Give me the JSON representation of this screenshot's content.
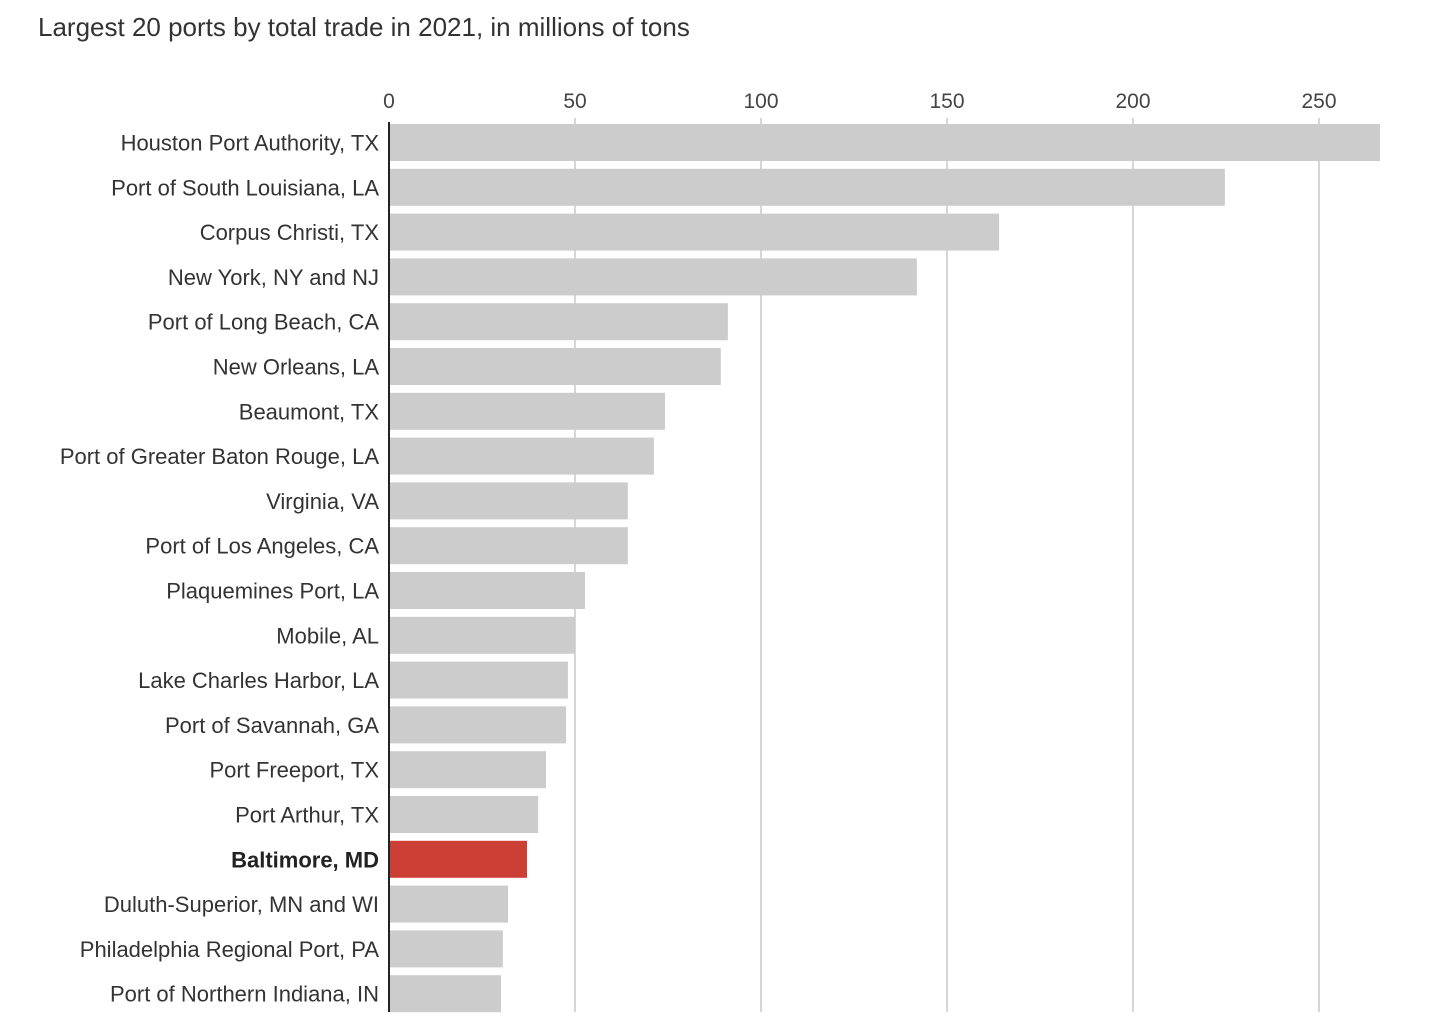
{
  "chart_data": {
    "type": "bar",
    "orientation": "horizontal",
    "title": "Largest 20 ports by total trade in 2021, in millions of tons",
    "xlabel": "",
    "ylabel": "",
    "xlim": [
      0,
      268
    ],
    "xticks": [
      0,
      50,
      100,
      150,
      200,
      250
    ],
    "grid": true,
    "categories": [
      "Houston Port Authority, TX",
      "Port of South Louisiana, LA",
      "Corpus Christi, TX",
      "New York, NY and NJ",
      "Port of Long Beach, CA",
      "New Orleans, LA",
      "Beaumont, TX",
      "Port of Greater Baton Rouge, LA",
      "Virginia, VA",
      "Port of Los Angeles, CA",
      "Plaquemines Port, LA",
      "Mobile, AL",
      "Lake Charles Harbor, LA",
      "Port of Savannah, GA",
      "Port Freeport, TX",
      "Port Arthur, TX",
      "Baltimore, MD",
      "Duluth-Superior, MN and WI",
      "Philadelphia Regional Port, PA",
      "Port of Northern Indiana, IN"
    ],
    "values": [
      266.4,
      224.7,
      164.0,
      141.9,
      91.1,
      89.2,
      74.2,
      71.2,
      64.2,
      64.2,
      52.7,
      50.0,
      48.1,
      47.6,
      42.2,
      40.1,
      37.1,
      32.0,
      30.6,
      30.1
    ],
    "highlight": "Baltimore, MD",
    "colors": {
      "bar": "#cccccc",
      "highlight": "#cc3f34",
      "grid": "#c8c8c8",
      "axis": "#222222"
    }
  }
}
